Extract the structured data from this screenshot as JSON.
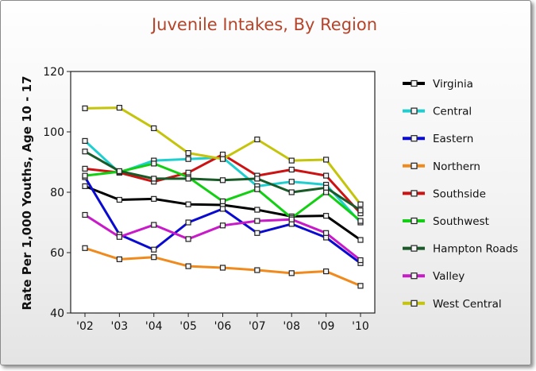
{
  "chart_data": {
    "type": "line",
    "title": "Juvenile Intakes, By Region",
    "xlabel": "",
    "ylabel": "Rate Per 1,000 Youths, Age 10 - 17",
    "categories": [
      "'02",
      "'03",
      "'04",
      "'05",
      "'06",
      "'07",
      "'08",
      "'09",
      "'10"
    ],
    "ylim": [
      40,
      120
    ],
    "yticks": [
      40,
      60,
      80,
      100,
      120
    ],
    "grid": false,
    "legend_position": "right",
    "series": [
      {
        "name": "Virginia",
        "color": "#000000",
        "values": [
          82,
          77.5,
          77.8,
          76,
          75.8,
          74.2,
          72,
          72.2,
          64.2
        ]
      },
      {
        "name": "Central",
        "color": "#1fcfcf",
        "values": [
          97,
          86.5,
          90.5,
          91,
          91.5,
          82,
          83.5,
          82.5,
          70
        ]
      },
      {
        "name": "Eastern",
        "color": "#0a0ad0",
        "values": [
          85,
          66,
          61,
          70,
          74.5,
          66.5,
          69.5,
          65,
          56.5
        ]
      },
      {
        "name": "Northern",
        "color": "#f08a1c",
        "values": [
          61.5,
          57.8,
          58.5,
          55.5,
          55,
          54.2,
          53.2,
          53.8,
          49
        ]
      },
      {
        "name": "Southside",
        "color": "#cc1212",
        "values": [
          87.8,
          86.5,
          83.5,
          86.5,
          92.5,
          85.5,
          87.5,
          85.5,
          73
        ]
      },
      {
        "name": "Southwest",
        "color": "#13cf13",
        "values": [
          85.5,
          86.8,
          89.5,
          85,
          77,
          81,
          71.5,
          80,
          70.5
        ]
      },
      {
        "name": "Hampton Roads",
        "color": "#1a5a28",
        "values": [
          93.5,
          87,
          84.5,
          84.5,
          84,
          84.5,
          80,
          81.5,
          74
        ]
      },
      {
        "name": "Valley",
        "color": "#c81ac8",
        "values": [
          72.5,
          65.2,
          69.2,
          64.5,
          69,
          70.5,
          71,
          66.5,
          57.5
        ]
      },
      {
        "name": "West Central",
        "color": "#c4c40c",
        "values": [
          107.8,
          108,
          101.2,
          93,
          91,
          97.5,
          90.5,
          90.8,
          76
        ]
      }
    ]
  }
}
